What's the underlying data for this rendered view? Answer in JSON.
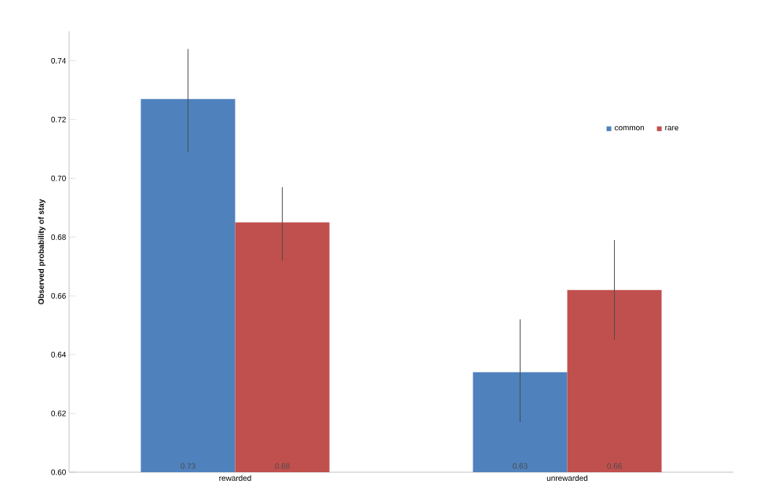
{
  "chart_data": {
    "type": "bar",
    "ylabel": "Observed probability of stay",
    "categories": [
      "rewarded",
      "unrewarded"
    ],
    "series": [
      {
        "name": "common",
        "color": "#4f81bd",
        "values": [
          0.727,
          0.634
        ],
        "errors": [
          [
            0.709,
            0.744
          ],
          [
            0.617,
            0.652
          ]
        ],
        "value_labels": [
          "0.73",
          "0.63"
        ]
      },
      {
        "name": "rare",
        "color": "#c0504d",
        "values": [
          0.685,
          0.662
        ],
        "errors": [
          [
            0.672,
            0.697
          ],
          [
            0.645,
            0.679
          ]
        ],
        "value_labels": [
          "0.68",
          "0.66"
        ]
      }
    ],
    "ylim": [
      0.6,
      0.75
    ],
    "yticks": [
      {
        "value": 0.6,
        "label": "0.60"
      },
      {
        "value": 0.62,
        "label": "0.62"
      },
      {
        "value": 0.64,
        "label": "0.64"
      },
      {
        "value": 0.66,
        "label": "0.66"
      },
      {
        "value": 0.68,
        "label": "0.68"
      },
      {
        "value": 0.7,
        "label": "0.70"
      },
      {
        "value": 0.72,
        "label": "0.72"
      },
      {
        "value": 0.74,
        "label": "0.74"
      }
    ],
    "legend": "top right",
    "grid": false
  }
}
